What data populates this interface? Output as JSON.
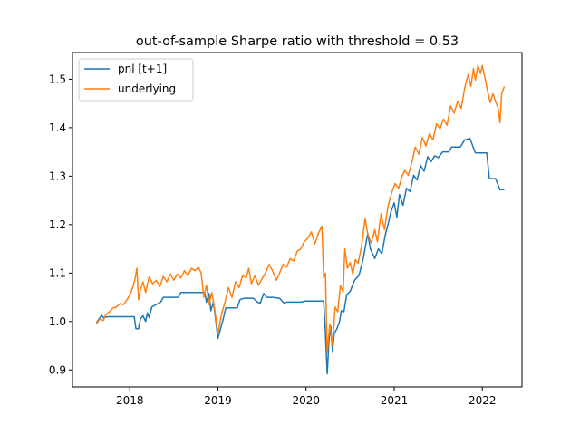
{
  "chart_data": {
    "type": "line",
    "title": "out-of-sample Sharpe ratio with threshold = 0.53",
    "xlabel": "",
    "ylabel": "",
    "x_ticks": [
      "2018",
      "2019",
      "2020",
      "2021",
      "2022"
    ],
    "x_tick_values": [
      2018.0,
      2019.0,
      2020.0,
      2021.0,
      2022.0
    ],
    "xlim": [
      2017.35,
      2022.45
    ],
    "y_ticks": [
      "0.9",
      "1.0",
      "1.1",
      "1.2",
      "1.3",
      "1.4",
      "1.5"
    ],
    "y_tick_values": [
      0.9,
      1.0,
      1.1,
      1.2,
      1.3,
      1.4,
      1.5
    ],
    "ylim": [
      0.865,
      1.555
    ],
    "grid": false,
    "legend_position": "top-left",
    "x_units": "decimal year",
    "series": [
      {
        "name": "pnl [t+1]",
        "color": "#1f77b4",
        "points": [
          [
            2017.62,
            0.997
          ],
          [
            2017.65,
            1.005
          ],
          [
            2017.68,
            1.013
          ],
          [
            2017.7,
            1.008
          ],
          [
            2017.75,
            1.01
          ],
          [
            2017.9,
            1.01
          ],
          [
            2018.0,
            1.01
          ],
          [
            2018.05,
            1.01
          ],
          [
            2018.07,
            0.985
          ],
          [
            2018.1,
            0.985
          ],
          [
            2018.12,
            1.005
          ],
          [
            2018.15,
            1.012
          ],
          [
            2018.18,
            1.0
          ],
          [
            2018.2,
            1.018
          ],
          [
            2018.22,
            1.008
          ],
          [
            2018.25,
            1.03
          ],
          [
            2018.3,
            1.035
          ],
          [
            2018.35,
            1.04
          ],
          [
            2018.38,
            1.05
          ],
          [
            2018.45,
            1.05
          ],
          [
            2018.55,
            1.05
          ],
          [
            2018.58,
            1.06
          ],
          [
            2018.7,
            1.06
          ],
          [
            2018.85,
            1.06
          ],
          [
            2018.87,
            1.04
          ],
          [
            2018.9,
            1.058
          ],
          [
            2018.92,
            1.022
          ],
          [
            2018.95,
            1.04
          ],
          [
            2019.0,
            0.965
          ],
          [
            2019.03,
            0.985
          ],
          [
            2019.06,
            1.005
          ],
          [
            2019.09,
            1.028
          ],
          [
            2019.15,
            1.028
          ],
          [
            2019.22,
            1.028
          ],
          [
            2019.25,
            1.045
          ],
          [
            2019.3,
            1.048
          ],
          [
            2019.4,
            1.048
          ],
          [
            2019.45,
            1.04
          ],
          [
            2019.48,
            1.038
          ],
          [
            2019.52,
            1.058
          ],
          [
            2019.55,
            1.05
          ],
          [
            2019.62,
            1.05
          ],
          [
            2019.7,
            1.048
          ],
          [
            2019.75,
            1.038
          ],
          [
            2019.78,
            1.04
          ],
          [
            2019.85,
            1.04
          ],
          [
            2019.95,
            1.04
          ],
          [
            2019.98,
            1.042
          ],
          [
            2020.1,
            1.042
          ],
          [
            2020.2,
            1.042
          ],
          [
            2020.22,
            0.975
          ],
          [
            2020.24,
            0.892
          ],
          [
            2020.26,
            0.96
          ],
          [
            2020.28,
            0.99
          ],
          [
            2020.3,
            0.938
          ],
          [
            2020.32,
            0.975
          ],
          [
            2020.35,
            0.985
          ],
          [
            2020.38,
            1.0
          ],
          [
            2020.4,
            1.022
          ],
          [
            2020.43,
            1.02
          ],
          [
            2020.46,
            1.055
          ],
          [
            2020.5,
            1.062
          ],
          [
            2020.55,
            1.085
          ],
          [
            2020.6,
            1.095
          ],
          [
            2020.65,
            1.13
          ],
          [
            2020.7,
            1.182
          ],
          [
            2020.73,
            1.15
          ],
          [
            2020.78,
            1.13
          ],
          [
            2020.82,
            1.15
          ],
          [
            2020.86,
            1.14
          ],
          [
            2020.9,
            1.18
          ],
          [
            2020.93,
            1.2
          ],
          [
            2020.96,
            1.225
          ],
          [
            2021.0,
            1.245
          ],
          [
            2021.03,
            1.215
          ],
          [
            2021.06,
            1.262
          ],
          [
            2021.1,
            1.24
          ],
          [
            2021.14,
            1.275
          ],
          [
            2021.18,
            1.268
          ],
          [
            2021.22,
            1.302
          ],
          [
            2021.26,
            1.292
          ],
          [
            2021.3,
            1.322
          ],
          [
            2021.34,
            1.31
          ],
          [
            2021.38,
            1.34
          ],
          [
            2021.42,
            1.33
          ],
          [
            2021.46,
            1.342
          ],
          [
            2021.5,
            1.338
          ],
          [
            2021.55,
            1.35
          ],
          [
            2021.62,
            1.35
          ],
          [
            2021.65,
            1.36
          ],
          [
            2021.75,
            1.36
          ],
          [
            2021.8,
            1.375
          ],
          [
            2021.86,
            1.378
          ],
          [
            2021.92,
            1.348
          ],
          [
            2022.0,
            1.348
          ],
          [
            2022.05,
            1.348
          ],
          [
            2022.08,
            1.295
          ],
          [
            2022.15,
            1.295
          ],
          [
            2022.2,
            1.272
          ],
          [
            2022.25,
            1.272
          ]
        ]
      },
      {
        "name": "underlying",
        "color": "#ff7f0e",
        "points": [
          [
            2017.62,
            0.995
          ],
          [
            2017.66,
            1.005
          ],
          [
            2017.7,
            1.002
          ],
          [
            2017.73,
            1.015
          ],
          [
            2017.77,
            1.02
          ],
          [
            2017.81,
            1.028
          ],
          [
            2017.85,
            1.03
          ],
          [
            2017.89,
            1.037
          ],
          [
            2017.93,
            1.035
          ],
          [
            2017.97,
            1.045
          ],
          [
            2018.01,
            1.058
          ],
          [
            2018.04,
            1.074
          ],
          [
            2018.06,
            1.088
          ],
          [
            2018.08,
            1.11
          ],
          [
            2018.1,
            1.045
          ],
          [
            2018.12,
            1.065
          ],
          [
            2018.15,
            1.082
          ],
          [
            2018.18,
            1.06
          ],
          [
            2018.22,
            1.092
          ],
          [
            2018.26,
            1.078
          ],
          [
            2018.3,
            1.085
          ],
          [
            2018.34,
            1.072
          ],
          [
            2018.38,
            1.093
          ],
          [
            2018.42,
            1.082
          ],
          [
            2018.46,
            1.098
          ],
          [
            2018.5,
            1.085
          ],
          [
            2018.54,
            1.098
          ],
          [
            2018.58,
            1.09
          ],
          [
            2018.62,
            1.105
          ],
          [
            2018.66,
            1.095
          ],
          [
            2018.7,
            1.11
          ],
          [
            2018.74,
            1.105
          ],
          [
            2018.78,
            1.112
          ],
          [
            2018.81,
            1.1
          ],
          [
            2018.84,
            1.05
          ],
          [
            2018.87,
            1.075
          ],
          [
            2018.9,
            1.035
          ],
          [
            2018.93,
            1.06
          ],
          [
            2018.96,
            1.03
          ],
          [
            2019.0,
            0.975
          ],
          [
            2019.04,
            1.015
          ],
          [
            2019.08,
            1.04
          ],
          [
            2019.12,
            1.07
          ],
          [
            2019.16,
            1.05
          ],
          [
            2019.2,
            1.082
          ],
          [
            2019.24,
            1.07
          ],
          [
            2019.28,
            1.095
          ],
          [
            2019.32,
            1.09
          ],
          [
            2019.35,
            1.11
          ],
          [
            2019.38,
            1.078
          ],
          [
            2019.42,
            1.095
          ],
          [
            2019.46,
            1.075
          ],
          [
            2019.5,
            1.088
          ],
          [
            2019.54,
            1.1
          ],
          [
            2019.58,
            1.118
          ],
          [
            2019.62,
            1.105
          ],
          [
            2019.66,
            1.085
          ],
          [
            2019.7,
            1.1
          ],
          [
            2019.74,
            1.118
          ],
          [
            2019.78,
            1.112
          ],
          [
            2019.82,
            1.13
          ],
          [
            2019.86,
            1.125
          ],
          [
            2019.9,
            1.145
          ],
          [
            2019.94,
            1.15
          ],
          [
            2019.98,
            1.165
          ],
          [
            2020.02,
            1.172
          ],
          [
            2020.06,
            1.185
          ],
          [
            2020.1,
            1.16
          ],
          [
            2020.14,
            1.182
          ],
          [
            2020.18,
            1.197
          ],
          [
            2020.2,
            1.09
          ],
          [
            2020.22,
            1.1
          ],
          [
            2020.24,
            0.935
          ],
          [
            2020.27,
            0.995
          ],
          [
            2020.3,
            0.95
          ],
          [
            2020.33,
            1.03
          ],
          [
            2020.36,
            1.02
          ],
          [
            2020.39,
            1.075
          ],
          [
            2020.42,
            1.06
          ],
          [
            2020.44,
            1.15
          ],
          [
            2020.47,
            1.11
          ],
          [
            2020.5,
            1.122
          ],
          [
            2020.53,
            1.098
          ],
          [
            2020.56,
            1.128
          ],
          [
            2020.59,
            1.12
          ],
          [
            2020.63,
            1.155
          ],
          [
            2020.67,
            1.212
          ],
          [
            2020.7,
            1.18
          ],
          [
            2020.74,
            1.162
          ],
          [
            2020.78,
            1.19
          ],
          [
            2020.81,
            1.165
          ],
          [
            2020.85,
            1.222
          ],
          [
            2020.89,
            1.19
          ],
          [
            2020.93,
            1.238
          ],
          [
            2020.97,
            1.265
          ],
          [
            2021.01,
            1.285
          ],
          [
            2021.05,
            1.275
          ],
          [
            2021.09,
            1.3
          ],
          [
            2021.12,
            1.312
          ],
          [
            2021.16,
            1.302
          ],
          [
            2021.2,
            1.328
          ],
          [
            2021.24,
            1.36
          ],
          [
            2021.28,
            1.345
          ],
          [
            2021.32,
            1.38
          ],
          [
            2021.36,
            1.362
          ],
          [
            2021.4,
            1.388
          ],
          [
            2021.44,
            1.375
          ],
          [
            2021.48,
            1.408
          ],
          [
            2021.52,
            1.398
          ],
          [
            2021.56,
            1.418
          ],
          [
            2021.6,
            1.405
          ],
          [
            2021.64,
            1.445
          ],
          [
            2021.68,
            1.43
          ],
          [
            2021.72,
            1.455
          ],
          [
            2021.76,
            1.44
          ],
          [
            2021.8,
            1.482
          ],
          [
            2021.84,
            1.51
          ],
          [
            2021.87,
            1.485
          ],
          [
            2021.9,
            1.522
          ],
          [
            2021.92,
            1.498
          ],
          [
            2021.95,
            1.528
          ],
          [
            2021.98,
            1.512
          ],
          [
            2022.0,
            1.528
          ],
          [
            2022.03,
            1.502
          ],
          [
            2022.06,
            1.475
          ],
          [
            2022.09,
            1.452
          ],
          [
            2022.12,
            1.47
          ],
          [
            2022.15,
            1.455
          ],
          [
            2022.18,
            1.44
          ],
          [
            2022.2,
            1.41
          ],
          [
            2022.22,
            1.47
          ],
          [
            2022.25,
            1.485
          ]
        ]
      }
    ]
  }
}
